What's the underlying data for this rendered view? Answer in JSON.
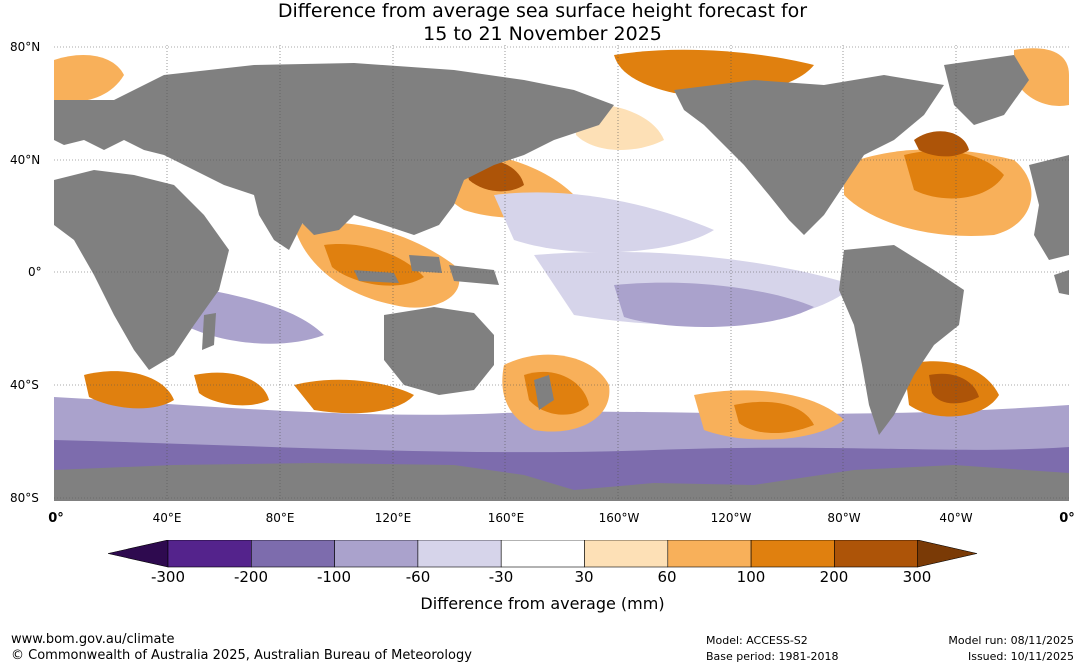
{
  "title_line1": "Difference from average sea surface height forecast for",
  "title_line2": "15 to 21 November 2025",
  "lat_labels": [
    "80°N",
    "40°N",
    "0°",
    "40°S",
    "80°S"
  ],
  "lon_labels": [
    "0°",
    "40°E",
    "80°E",
    "120°E",
    "160°E",
    "160°W",
    "120°W",
    "80°W",
    "40°W",
    "0°"
  ],
  "legend": {
    "title": "Difference from average (mm)",
    "ticks": [
      "-300",
      "-200",
      "-100",
      "-60",
      "-30",
      "30",
      "60",
      "100",
      "200",
      "300"
    ],
    "colors": [
      "#2e0a4f",
      "#54238c",
      "#7d6cad",
      "#aaa2cc",
      "#d6d4ea",
      "#ffffff",
      "#fde0b6",
      "#f8b05a",
      "#e0800f",
      "#ad5408",
      "#7a3a06"
    ]
  },
  "footer": {
    "url": "www.bom.gov.au/climate",
    "copyright": "© Commonwealth of Australia 2025, Australian Bureau of Meteorology",
    "model": "Model: ACCESS-S2",
    "base_period": "Base period: 1981-2018",
    "model_run": "Model run: 08/11/2025",
    "issued": "Issued: 10/11/2025"
  },
  "colors": {
    "land": "#808080",
    "ocean_neutral": "#ffffff"
  }
}
